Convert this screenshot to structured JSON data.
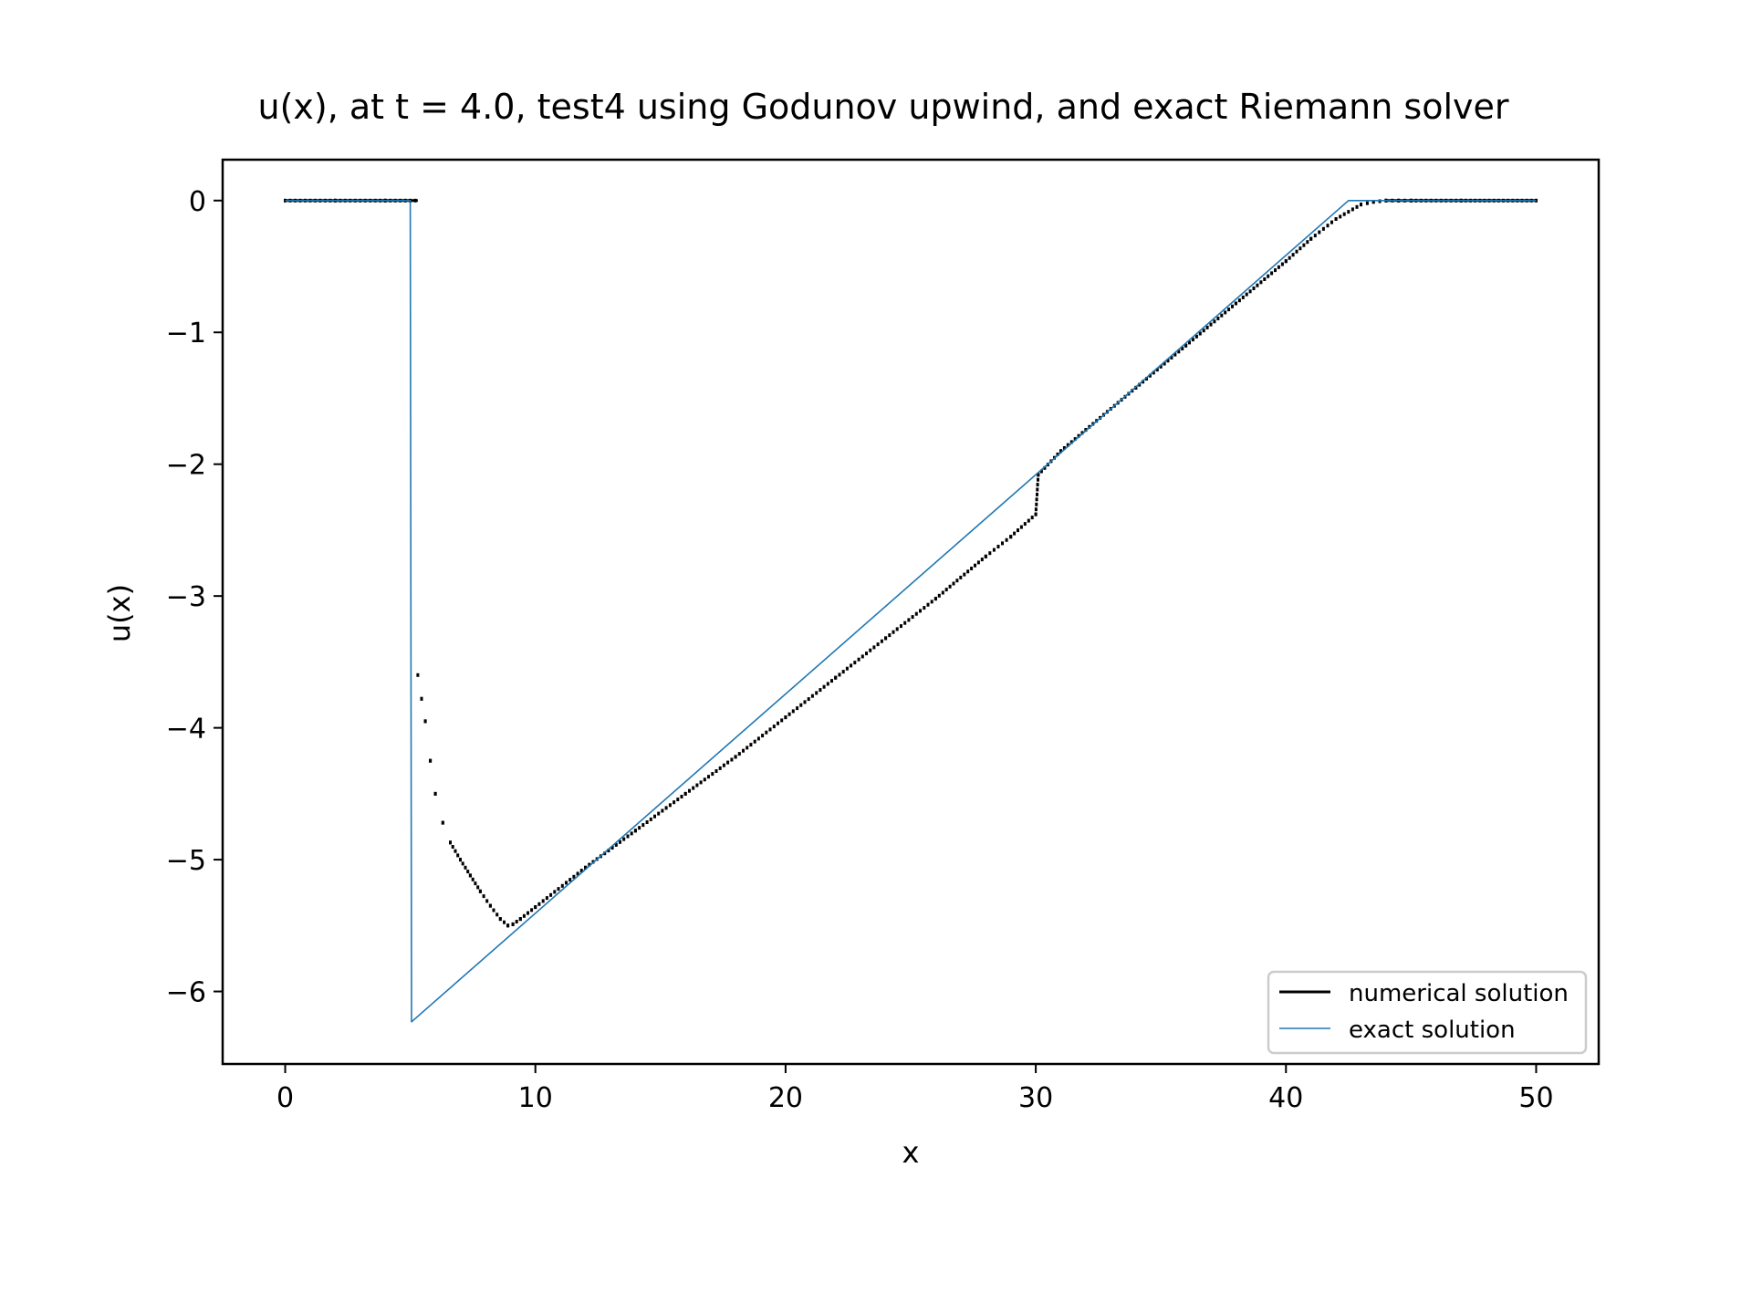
{
  "chart_data": {
    "type": "line",
    "title": "u(x), at t = 4.0, test4 using Godunov upwind, and exact Riemann solver",
    "xlabel": "x",
    "ylabel": "u(x)",
    "xlim": [
      -2.5,
      52.5
    ],
    "ylim": [
      -6.55,
      0.31
    ],
    "grid": false,
    "legend_position": "lower-right",
    "xticks": [
      0,
      10,
      20,
      30,
      40,
      50
    ],
    "xtick_labels": [
      "0",
      "10",
      "20",
      "30",
      "40",
      "50"
    ],
    "yticks": [
      0,
      -1,
      -2,
      -3,
      -4,
      -5,
      -6
    ],
    "ytick_labels": [
      "0",
      "−1",
      "−2",
      "−3",
      "−4",
      "−5",
      "−6"
    ],
    "series": [
      {
        "name": "numerical solution",
        "style": "dotted-markers",
        "color": "#000000",
        "x": [
          0,
          2,
          4,
          5.2,
          5.3,
          5.45,
          5.6,
          5.8,
          6.0,
          6.3,
          6.6,
          7.0,
          7.4,
          7.8,
          8.2,
          8.6,
          8.9,
          9.1,
          9.4,
          10,
          12,
          14,
          16,
          18,
          20,
          22,
          24,
          26,
          28,
          29,
          30,
          30.1,
          31,
          32,
          34,
          36,
          38,
          40,
          41,
          42,
          43,
          43.5,
          44,
          44.5,
          45,
          47,
          50
        ],
        "y": [
          0,
          0,
          0,
          0,
          -3.6,
          -3.78,
          -3.95,
          -4.25,
          -4.5,
          -4.72,
          -4.87,
          -5.0,
          -5.12,
          -5.24,
          -5.35,
          -5.45,
          -5.5,
          -5.49,
          -5.45,
          -5.36,
          -5.06,
          -4.78,
          -4.5,
          -4.22,
          -3.92,
          -3.62,
          -3.32,
          -3.02,
          -2.7,
          -2.55,
          -2.38,
          -2.08,
          -1.9,
          -1.74,
          -1.42,
          -1.1,
          -0.78,
          -0.46,
          -0.29,
          -0.14,
          -0.03,
          -0.01,
          0,
          0,
          0,
          0,
          0
        ]
      },
      {
        "name": "exact solution",
        "style": "line",
        "color": "#1f77b4",
        "x": [
          0,
          5.0,
          5.05,
          42.5,
          50
        ],
        "y": [
          0,
          0,
          -6.23,
          0,
          0
        ]
      }
    ]
  }
}
